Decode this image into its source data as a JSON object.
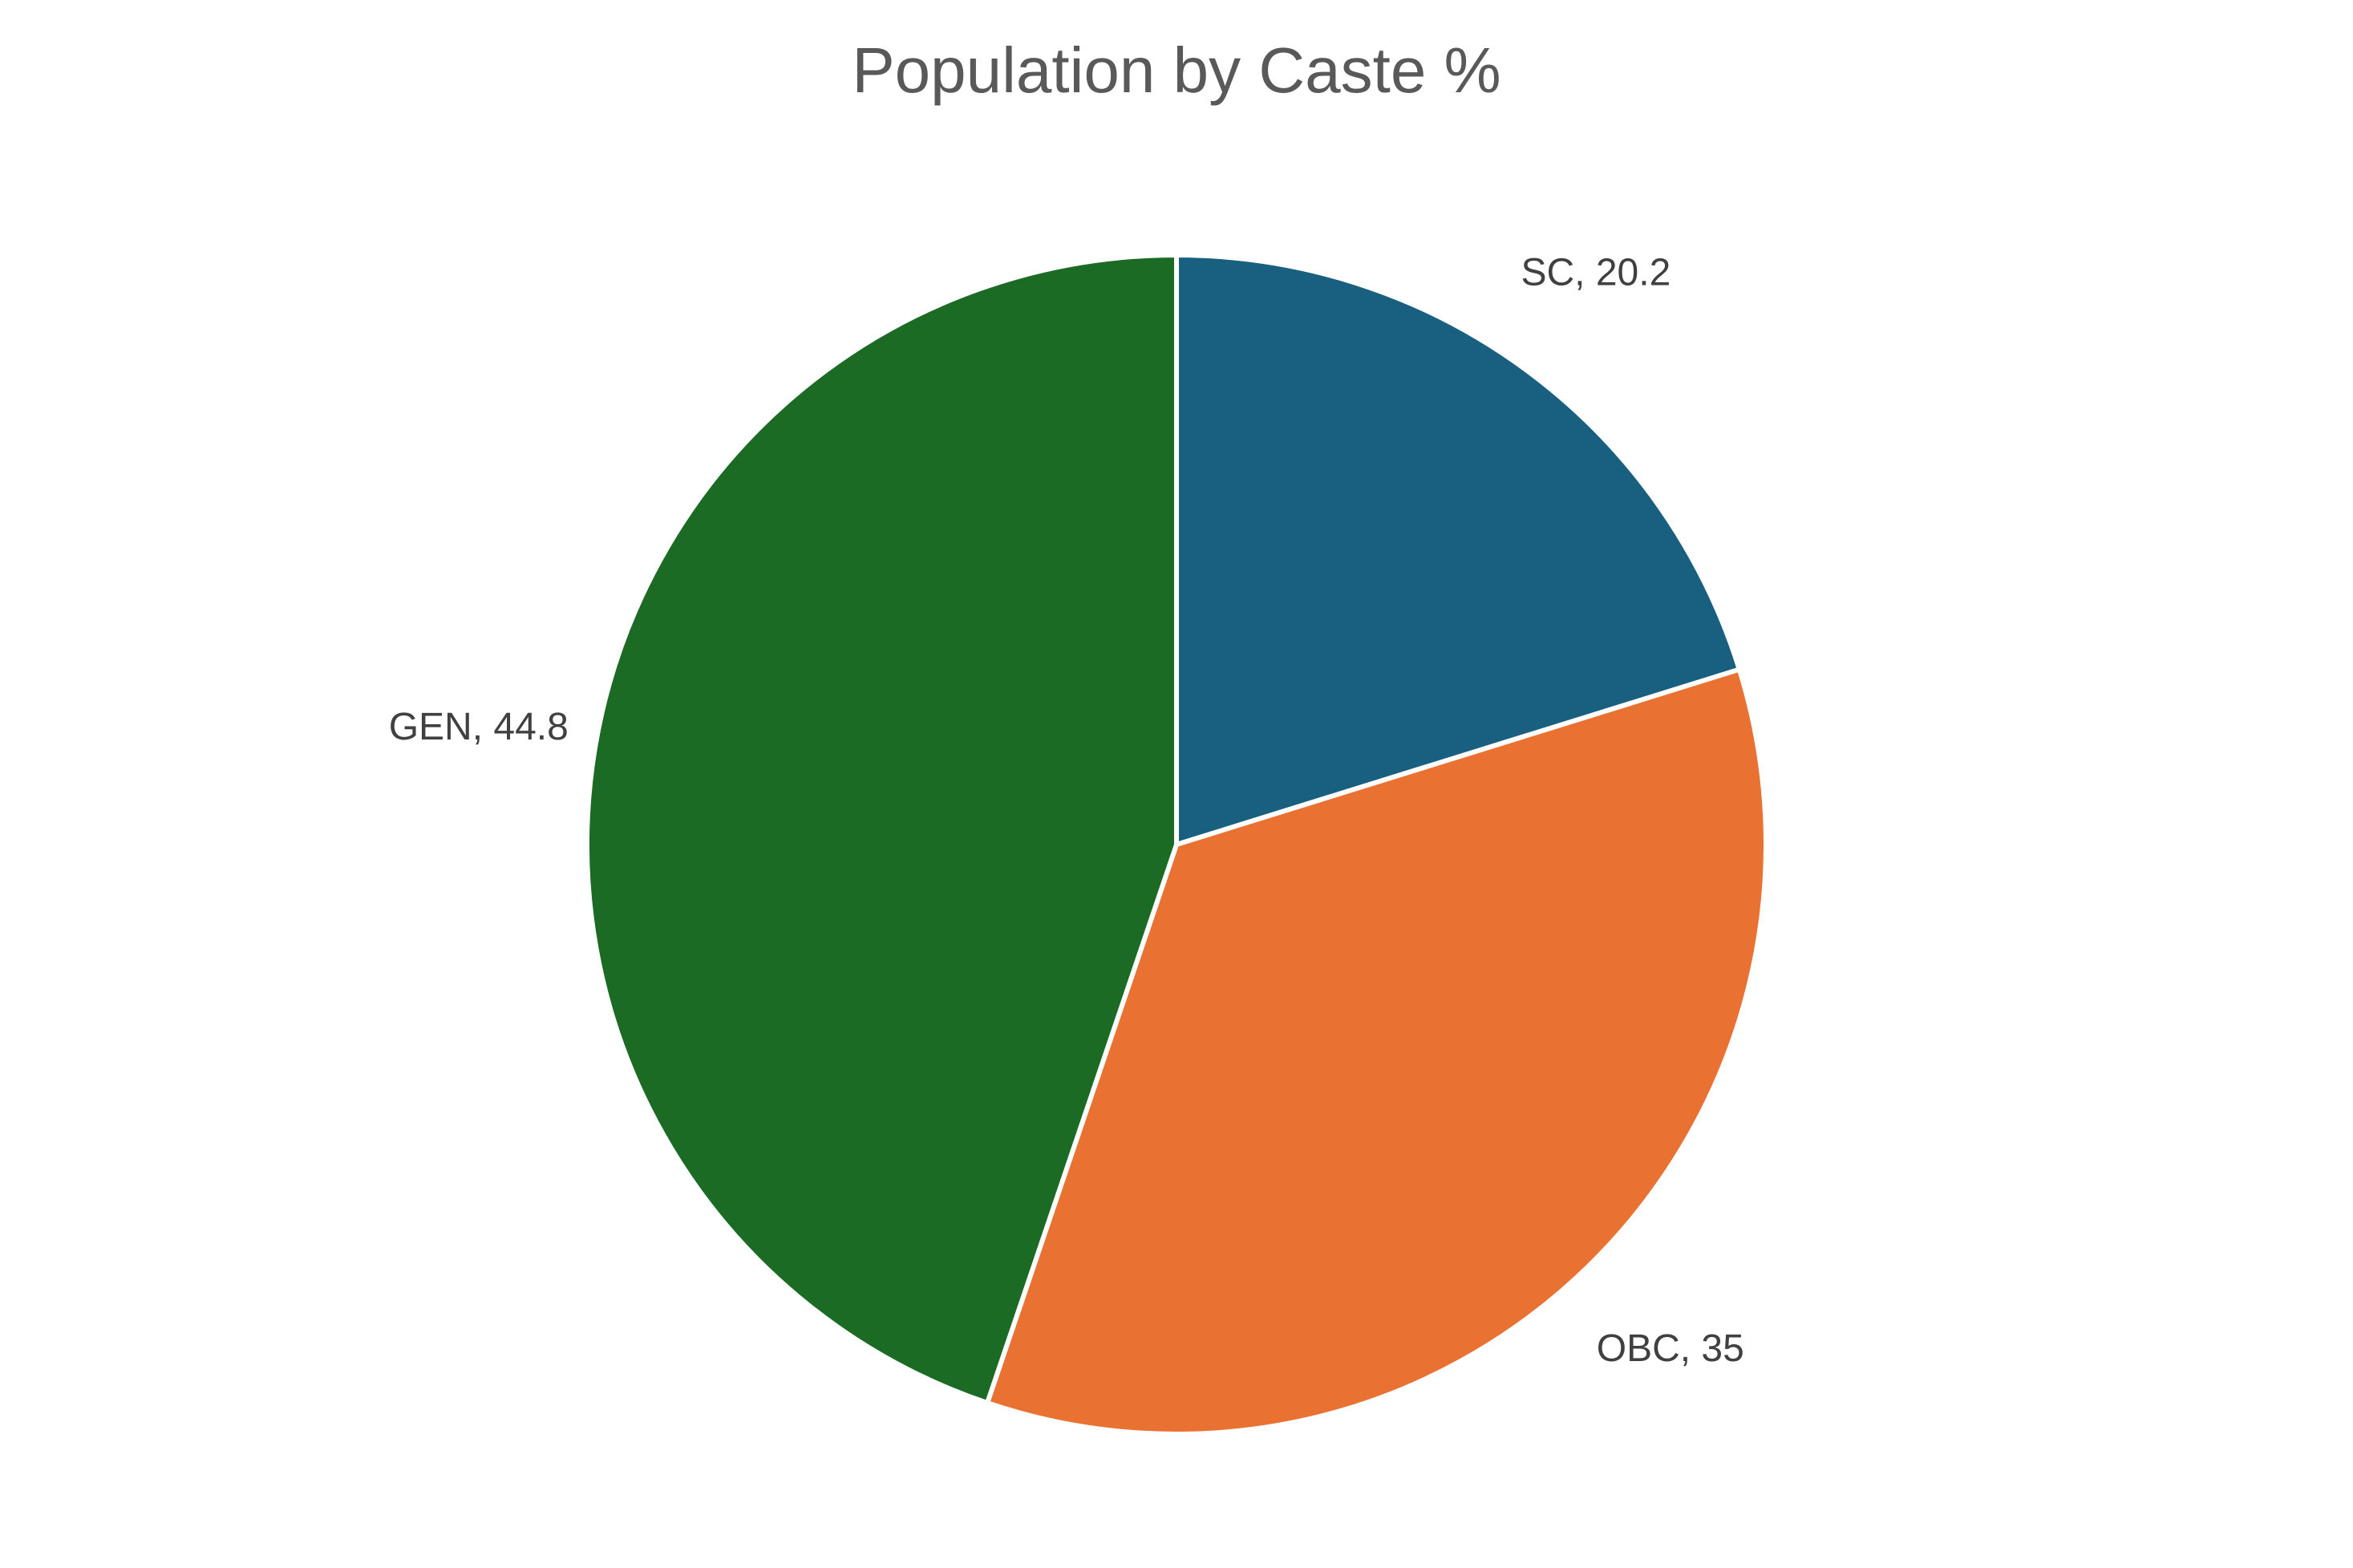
{
  "chart_data": {
    "type": "pie",
    "title": "Population by Caste %",
    "categories": [
      "SC",
      "OBC",
      "GEN"
    ],
    "values": [
      20.2,
      35,
      44.8
    ],
    "value_labels": [
      "SC, 20.2",
      "OBC, 35",
      "GEN, 44.8"
    ],
    "colors": [
      "#185f80",
      "#e97132",
      "#1b6b24"
    ]
  }
}
